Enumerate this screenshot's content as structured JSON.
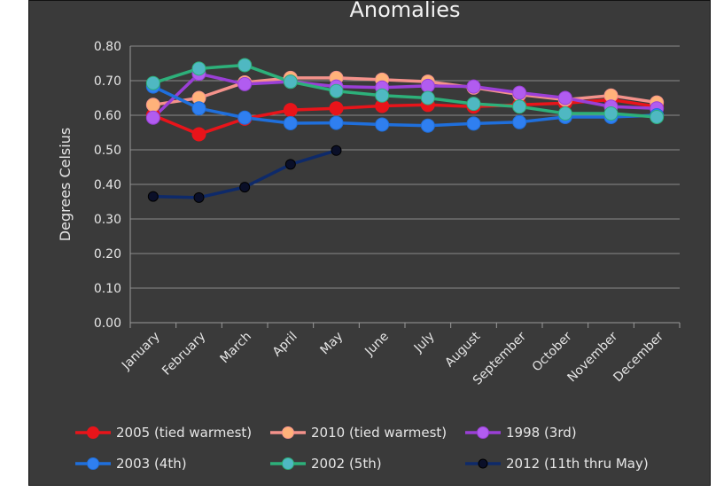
{
  "chart_data": {
    "type": "line",
    "title": "Anomalies",
    "ylabel": "Degrees Celsius",
    "xlabel": "",
    "ylim": [
      0,
      0.8
    ],
    "yticks": [
      "0.00",
      "0.10",
      "0.20",
      "0.30",
      "0.40",
      "0.50",
      "0.60",
      "0.70",
      "0.80"
    ],
    "categories": [
      "January",
      "February",
      "March",
      "April",
      "May",
      "June",
      "July",
      "August",
      "September",
      "October",
      "November",
      "December"
    ],
    "grid": true,
    "legend_position": "bottom",
    "series": [
      {
        "name": "2005 (tied warmest)",
        "color": "#e8141a",
        "values": [
          0.6,
          0.545,
          0.59,
          0.615,
          0.62,
          0.627,
          0.63,
          0.625,
          0.63,
          0.635,
          0.645,
          0.625
        ]
      },
      {
        "name": "2010 (tied warmest)",
        "color": "#f4928b",
        "values": [
          0.63,
          0.65,
          0.695,
          0.708,
          0.708,
          0.703,
          0.697,
          0.68,
          0.66,
          0.645,
          0.657,
          0.637
        ]
      },
      {
        "name": "1998 (3rd)",
        "color": "#9a3fd6",
        "values": [
          0.593,
          0.72,
          0.69,
          0.697,
          0.683,
          0.68,
          0.685,
          0.683,
          0.665,
          0.65,
          0.625,
          0.62
        ]
      },
      {
        "name": "2003 (4th)",
        "color": "#1f6fdc",
        "values": [
          0.683,
          0.62,
          0.593,
          0.577,
          0.578,
          0.573,
          0.57,
          0.576,
          0.58,
          0.595,
          0.595,
          0.6
        ]
      },
      {
        "name": "2002 (5th)",
        "color": "#2db07a",
        "values": [
          0.693,
          0.735,
          0.745,
          0.697,
          0.67,
          0.657,
          0.65,
          0.633,
          0.625,
          0.605,
          0.605,
          0.595
        ]
      },
      {
        "name": "2012 (11th thru May)",
        "color": "#0e2a6a",
        "values": [
          0.365,
          0.362,
          0.392,
          0.458,
          0.498,
          null,
          null,
          null,
          null,
          null,
          null,
          null
        ]
      }
    ]
  },
  "style": {
    "marker_colors": [
      "#e8141a",
      "#ffb27a",
      "#b15cf0",
      "#2f7ff0",
      "#4fb8c2",
      "#0a0f28"
    ]
  }
}
